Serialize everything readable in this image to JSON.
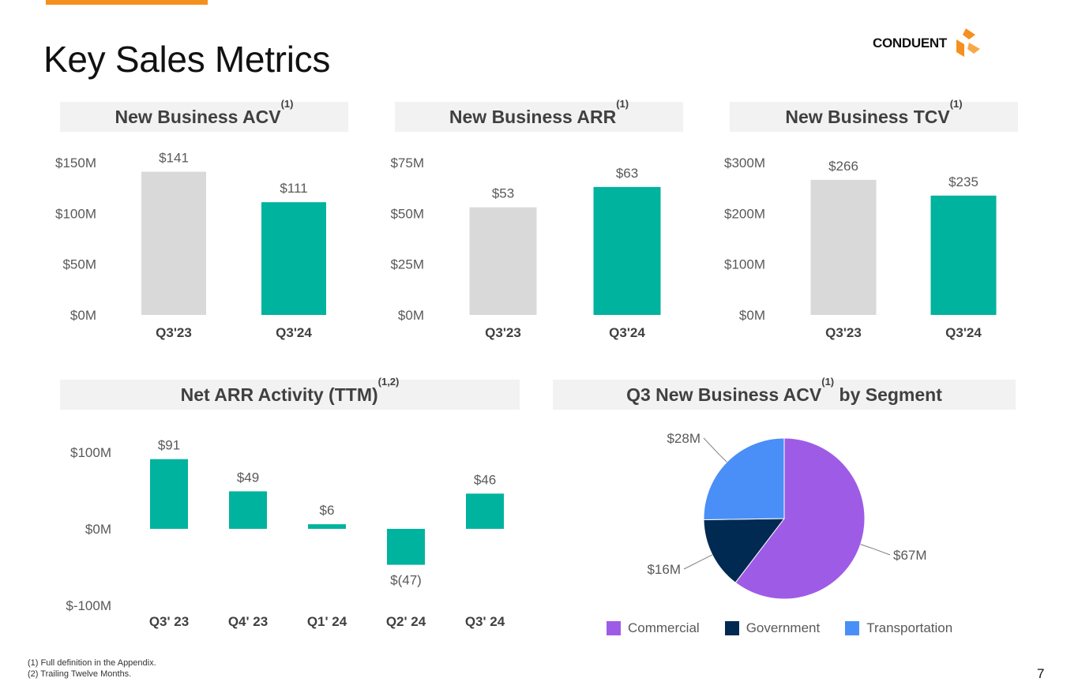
{
  "page": {
    "title": "Key Sales Metrics",
    "logo_text": "CONDUENT",
    "page_number": "7",
    "footnotes": [
      "(1) Full definition in the Appendix.",
      "(2) Trailing Twelve Months."
    ]
  },
  "colors": {
    "teal": "#00b39e",
    "gray": "#d9d9d9",
    "commercial": "#9e5ce6",
    "government": "#002a52",
    "transportation": "#4a8ff7",
    "accent": "#f5901e"
  },
  "panels": {
    "acv_title": "New Business ACV",
    "acv_sup": "(1)",
    "arr_title": "New Business ARR",
    "arr_sup": "(1)",
    "tcv_title": "New Business TCV",
    "tcv_sup": "(1)",
    "net_title": "Net ARR Activity (TTM)",
    "net_sup": "(1,2)",
    "seg_title_pre": "Q3 New Business ACV",
    "seg_sup": "(1)",
    "seg_title_post": " by Segment"
  },
  "chart_data": [
    {
      "id": "acv",
      "type": "bar",
      "title": "New Business ACV(1)",
      "categories": [
        "Q3'23",
        "Q3'24"
      ],
      "values": [
        141,
        111
      ],
      "value_labels": [
        "$141",
        "$111"
      ],
      "ylim": [
        0,
        150
      ],
      "yticks": [
        0,
        50,
        100,
        150
      ],
      "ytick_labels": [
        "$0M",
        "$50M",
        "$100M",
        "$150M"
      ],
      "bar_colors": [
        "#d9d9d9",
        "#00b39e"
      ]
    },
    {
      "id": "arr",
      "type": "bar",
      "title": "New Business ARR(1)",
      "categories": [
        "Q3'23",
        "Q3'24"
      ],
      "values": [
        53,
        63
      ],
      "value_labels": [
        "$53",
        "$63"
      ],
      "ylim": [
        0,
        75
      ],
      "yticks": [
        0,
        25,
        50,
        75
      ],
      "ytick_labels": [
        "$0M",
        "$25M",
        "$50M",
        "$75M"
      ],
      "bar_colors": [
        "#d9d9d9",
        "#00b39e"
      ]
    },
    {
      "id": "tcv",
      "type": "bar",
      "title": "New Business TCV(1)",
      "categories": [
        "Q3'23",
        "Q3'24"
      ],
      "values": [
        266,
        235
      ],
      "value_labels": [
        "$266",
        "$235"
      ],
      "ylim": [
        0,
        300
      ],
      "yticks": [
        0,
        100,
        200,
        300
      ],
      "ytick_labels": [
        "$0M",
        "$100M",
        "$200M",
        "$300M"
      ],
      "bar_colors": [
        "#d9d9d9",
        "#00b39e"
      ]
    },
    {
      "id": "net",
      "type": "bar",
      "title": "Net ARR Activity (TTM)(1,2)",
      "categories": [
        "Q3' 23",
        "Q4' 23",
        "Q1' 24",
        "Q2' 24",
        "Q3' 24"
      ],
      "values": [
        91,
        49,
        6,
        -47,
        46
      ],
      "value_labels": [
        "$91",
        "$49",
        "$6",
        "$(47)",
        "$46"
      ],
      "ylim": [
        -100,
        100
      ],
      "yticks": [
        -100,
        0,
        100
      ],
      "ytick_labels": [
        "$-100M",
        "$0M",
        "$100M"
      ],
      "bar_colors": [
        "#00b39e",
        "#00b39e",
        "#00b39e",
        "#00b39e",
        "#00b39e"
      ]
    },
    {
      "id": "segment",
      "type": "pie",
      "title": "Q3 New Business ACV(1) by Segment",
      "labels": [
        "Commercial",
        "Government",
        "Transportation"
      ],
      "values": [
        67,
        16,
        28
      ],
      "value_labels": [
        "$67M",
        "$16M",
        "$28M"
      ],
      "colors": [
        "#9e5ce6",
        "#002a52",
        "#4a8ff7"
      ],
      "legend": "bottom"
    }
  ]
}
